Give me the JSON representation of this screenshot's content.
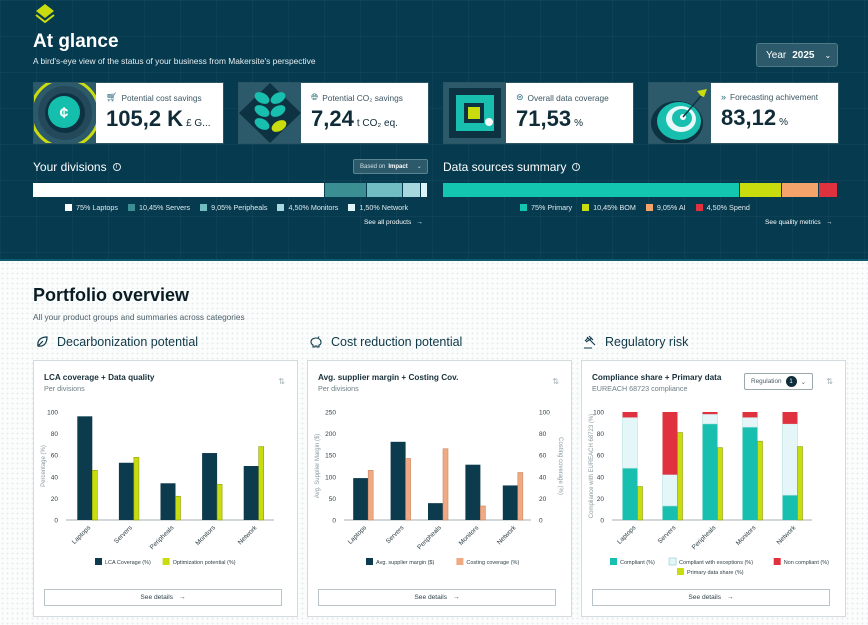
{
  "hero": {
    "title": "At glance",
    "subtitle": "A bird's-eye view of the status of your business from Makersite's perspective",
    "year_label": "Year",
    "year_value": "2025",
    "kpis": [
      {
        "label": "Potential cost savings",
        "value": "105,2 K",
        "unit": "£ G...",
        "icon": "cart-icon"
      },
      {
        "label": "Potential CO₂ savings",
        "value": "7,24",
        "unit": "t CO₂ eq.",
        "icon": "globe-icon"
      },
      {
        "label": "Overall data coverage",
        "value": "71,53",
        "unit": "%",
        "icon": "coverage-icon"
      },
      {
        "label": "Forecasting achivement",
        "value": "83,12",
        "unit": "%",
        "icon": "fast-forward-icon"
      }
    ],
    "divisions": {
      "title": "Your divisions",
      "based_on_label": "Based on",
      "based_on_value": "Impact",
      "segments": [
        {
          "label": "75% Laptops",
          "value": 75,
          "color": "#ffffff"
        },
        {
          "label": "10,45% Servers",
          "value": 10.45,
          "color": "#3b8f93"
        },
        {
          "label": "9,05% Peripheals",
          "value": 9.05,
          "color": "#72bcc4"
        },
        {
          "label": "4,50% Monitors",
          "value": 4.5,
          "color": "#a6d8de"
        },
        {
          "label": "1,50% Network",
          "value": 1.5,
          "color": "#def4f6"
        }
      ],
      "link": "See all products"
    },
    "sources": {
      "title": "Data sources summary",
      "segments": [
        {
          "label": "75% Primary",
          "value": 75,
          "color": "#12c6b0"
        },
        {
          "label": "10,45% BOM",
          "value": 10.45,
          "color": "#c9dc0e"
        },
        {
          "label": "9,05% AI",
          "value": 9.05,
          "color": "#f4a46b"
        },
        {
          "label": "4,50% Spend",
          "value": 4.5,
          "color": "#e0323e"
        }
      ],
      "link": "See quality metrics"
    }
  },
  "portfolio": {
    "title": "Portfolio overview",
    "subtitle": "All your product groups and summaries across categories",
    "categories": [
      {
        "title": "Decarbonization potential",
        "icon": "leaf-icon"
      },
      {
        "title": "Cost reduction potential",
        "icon": "piggy-bank-icon"
      },
      {
        "title": "Regulatory risk",
        "icon": "gavel-icon"
      }
    ],
    "cards": [
      {
        "title": "LCA coverage + Data quality",
        "subtitle": "Per divisions",
        "details": "See details"
      },
      {
        "title": "Avg. supplier margin + Costing Cov.",
        "subtitle": "Per divisions",
        "details": "See details"
      },
      {
        "title": "Compliance share + Primary data",
        "subtitle": "EUREACH 68723 compliance",
        "details": "See details",
        "filter_label": "Regulation",
        "filter_count": "1"
      }
    ]
  },
  "chart_data": [
    {
      "type": "bar",
      "title": "LCA coverage + Data quality",
      "categories": [
        "Laptops",
        "Servers",
        "Peripheals",
        "Monitors",
        "Network"
      ],
      "ylabel": "Percentage (%)",
      "ylim": [
        0,
        100
      ],
      "yticks": [
        0,
        20,
        40,
        60,
        80,
        100
      ],
      "series": [
        {
          "name": "LCA Coverage (%)",
          "color": "#0d3b4e",
          "values": [
            96,
            53,
            34,
            62,
            50
          ]
        },
        {
          "name": "Optimization potential (%)",
          "color": "#c9dc0e",
          "values": [
            46,
            58,
            22,
            33,
            68
          ]
        }
      ],
      "legend": "bottom"
    },
    {
      "type": "bar",
      "title": "Avg. supplier margin + Costing Cov.",
      "categories": [
        "Laptops",
        "Servers",
        "Peripheals",
        "Monitors",
        "Network"
      ],
      "ylabel": "Avg. Supplier Margin ($)",
      "y2label": "Costing coverage (%)",
      "ylim": [
        0,
        250
      ],
      "y2lim": [
        0,
        100
      ],
      "yticks": [
        0,
        50,
        100,
        150,
        200,
        250
      ],
      "y2ticks": [
        0,
        20,
        40,
        60,
        80,
        100
      ],
      "series": [
        {
          "name": "Avg. supplier margin ($)",
          "color": "#0d3b4e",
          "axis": "left",
          "values": [
            97,
            181,
            39,
            128,
            80
          ]
        },
        {
          "name": "Costing coverage (%)",
          "color": "#f1a983",
          "axis": "right",
          "values": [
            46,
            57,
            66,
            13,
            44
          ]
        }
      ],
      "legend": "bottom"
    },
    {
      "type": "bar",
      "title": "Compliance share + Primary data",
      "categories": [
        "Laptops",
        "Servers",
        "Peripheals",
        "Monitors",
        "Network"
      ],
      "ylabel": "Compliance with EUREACH 68723 (%)",
      "ylim": [
        0,
        100
      ],
      "yticks": [
        0,
        20,
        40,
        60,
        80,
        100
      ],
      "stacked_series": [
        {
          "name": "Compliant (%)",
          "color": "#19bfae",
          "values": [
            48,
            13,
            89,
            86,
            23
          ]
        },
        {
          "name": "Compliant with exceptions (%)",
          "color": "#e4f6f8",
          "values": [
            47,
            29,
            9,
            9,
            66
          ]
        },
        {
          "name": "Non compliant (%)",
          "color": "#e0323e",
          "values": [
            5,
            58,
            2,
            5,
            11
          ]
        }
      ],
      "series": [
        {
          "name": "Primary data share (%)",
          "color": "#c9dc0e",
          "values": [
            31,
            81,
            67,
            73,
            68
          ]
        }
      ],
      "legend": "bottom"
    }
  ]
}
